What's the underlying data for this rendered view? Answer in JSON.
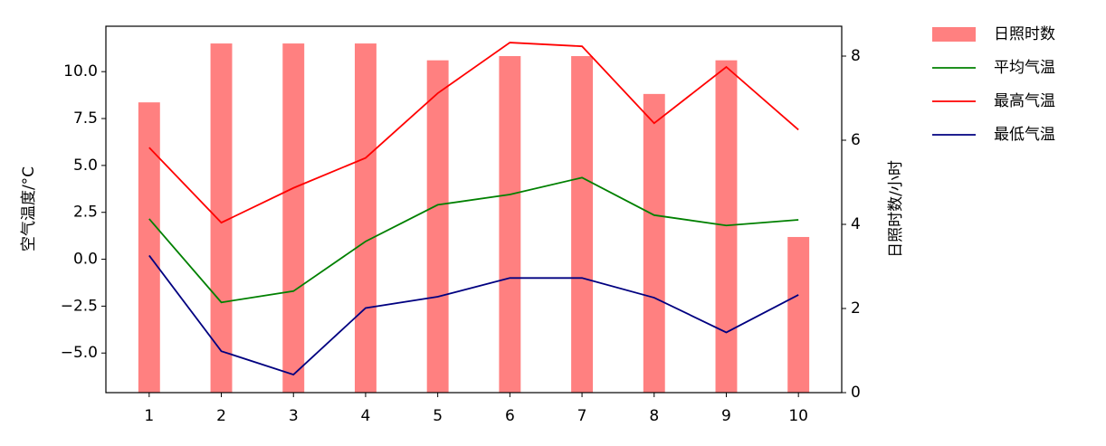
{
  "chart_data": {
    "type": "combo",
    "x": [
      1,
      2,
      3,
      4,
      5,
      6,
      7,
      8,
      9,
      10
    ],
    "xlim": [
      0.4,
      10.6
    ],
    "xticks": [
      1,
      2,
      3,
      4,
      5,
      6,
      7,
      8,
      9,
      10
    ],
    "ylabel": "空气温度/°C",
    "y2label": "日照时数/小时",
    "ylim": [
      -7.11,
      12.42
    ],
    "yticks": [
      {
        "value": -5,
        "label": "−5.0"
      },
      {
        "value": -2.5,
        "label": "−2.5"
      },
      {
        "value": 0,
        "label": "0.0"
      },
      {
        "value": 2.5,
        "label": "2.5"
      },
      {
        "value": 5,
        "label": "5.0"
      },
      {
        "value": 7.5,
        "label": "7.5"
      },
      {
        "value": 10,
        "label": "10.0"
      }
    ],
    "y2lim": [
      0,
      8.71
    ],
    "y2ticks": [
      0,
      2,
      4,
      6,
      8
    ],
    "series": [
      {
        "name": "日照时数",
        "type": "bar",
        "axis": "y2",
        "color": "#ff8080",
        "values": [
          6.9,
          8.3,
          8.3,
          8.3,
          7.9,
          8.0,
          8.0,
          7.1,
          7.9,
          3.7
        ]
      },
      {
        "name": "平均气温",
        "type": "line",
        "color": "#008000",
        "values": [
          2.15,
          -2.3,
          -1.7,
          0.95,
          2.9,
          3.45,
          4.35,
          2.35,
          1.8,
          2.1
        ]
      },
      {
        "name": "最高气温",
        "type": "line",
        "color": "#ff0000",
        "values": [
          5.95,
          1.95,
          3.8,
          5.4,
          8.85,
          11.55,
          11.35,
          7.25,
          10.25,
          6.9
        ]
      },
      {
        "name": "最低气温",
        "type": "line",
        "color": "#000080",
        "values": [
          0.2,
          -4.9,
          -6.15,
          -2.6,
          -2.0,
          -1.0,
          -1.0,
          -2.05,
          -3.9,
          -1.9
        ]
      }
    ]
  }
}
